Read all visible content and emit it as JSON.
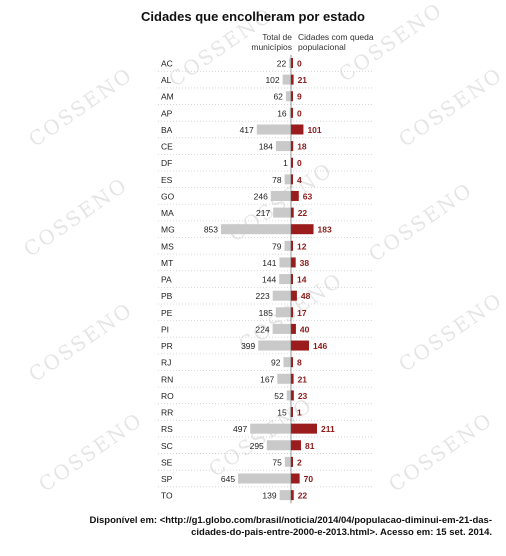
{
  "chart_data": {
    "type": "bar",
    "title": "Cidades que encolheram por estado",
    "series": [
      {
        "name": "Total de municípios",
        "values": [
          22,
          102,
          62,
          16,
          417,
          184,
          1,
          78,
          246,
          217,
          853,
          79,
          141,
          144,
          223,
          185,
          224,
          399,
          92,
          167,
          52,
          15,
          497,
          295,
          75,
          645,
          139
        ],
        "color": "#c9c9c9"
      },
      {
        "name": "Cidades com queda populacional",
        "values": [
          0,
          21,
          9,
          0,
          101,
          18,
          0,
          4,
          63,
          22,
          183,
          12,
          38,
          14,
          48,
          17,
          40,
          146,
          8,
          21,
          23,
          1,
          211,
          81,
          2,
          70,
          22
        ],
        "color": "#9b1c1c"
      }
    ],
    "categories": [
      "AC",
      "AL",
      "AM",
      "AP",
      "BA",
      "CE",
      "DF",
      "ES",
      "GO",
      "MA",
      "MG",
      "MS",
      "MT",
      "PA",
      "PB",
      "PE",
      "PI",
      "PR",
      "RJ",
      "RN",
      "RO",
      "RR",
      "RS",
      "SC",
      "SE",
      "SP",
      "TO"
    ],
    "header_total": "Total de municípios",
    "header_decline": "Cidades com queda populacional",
    "grid": false,
    "legend": "none"
  },
  "watermark_text": "COSSENO",
  "source": {
    "line1": "Disponível em: <http://g1.globo.com/brasil/noticia/2014/04/populacao-diminui-em-21-das-",
    "line2": "cidades-do-pais-entre-2000-e-2013.html>. Acesso em: 15 set. 2014."
  }
}
